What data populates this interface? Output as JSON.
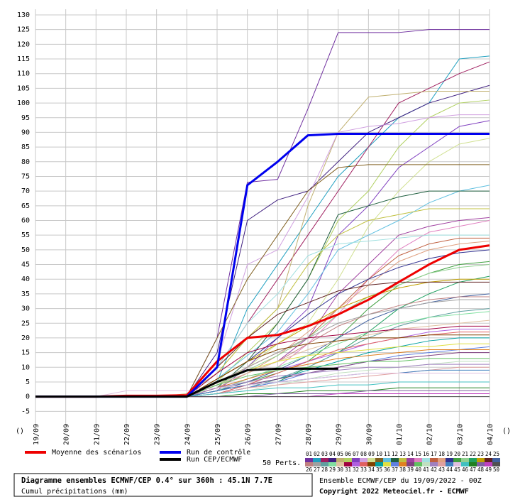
{
  "chart_data": {
    "type": "line",
    "title": "Diagramme ensembles ECMWF/CEP 0.4° sur 360h : 45.1N 7.7E",
    "subtitle": "Cumul précipitations (mm)",
    "run_info": "Ensemble ECMWF/CEP du 19/09/2022 - 00Z",
    "copyright": "Copyright 2022 Meteociel.fr - ECMWF",
    "perturbations_label": "50 Perts.",
    "axis_unit_labels": [
      "()",
      "()"
    ],
    "grid": true,
    "categories": [
      "19/09",
      "20/09",
      "21/09",
      "22/09",
      "23/09",
      "24/09",
      "25/09",
      "26/09",
      "27/09",
      "28/09",
      "29/09",
      "30/09",
      "01/10",
      "02/10",
      "03/10",
      "04/10"
    ],
    "ylim": [
      -10,
      130
    ],
    "yticks": [
      -5,
      0,
      5,
      10,
      15,
      20,
      25,
      30,
      35,
      40,
      45,
      50,
      55,
      60,
      65,
      70,
      75,
      80,
      85,
      90,
      95,
      100,
      105,
      110,
      115,
      120,
      125,
      130
    ],
    "main_series": [
      {
        "name": "Moyenne des scénarios",
        "color": "#ee0000",
        "values": [
          0,
          0,
          0,
          0.3,
          0.3,
          0.5,
          12,
          20,
          21,
          24,
          28,
          33,
          39,
          45,
          50,
          51.5
        ]
      },
      {
        "name": "Run de contrôle",
        "color": "#0000ee",
        "values": [
          0,
          0,
          0,
          0,
          0,
          0,
          10,
          72,
          80,
          89,
          89.5,
          89.5,
          89.5,
          89.5,
          89.5,
          89.5
        ]
      },
      {
        "name": "Run CEP/ECMWF",
        "color": "#000000",
        "values": [
          0,
          0,
          0,
          0,
          0,
          0,
          5,
          9,
          9.5,
          9.5,
          9.5,
          null,
          null,
          null,
          null,
          null
        ]
      }
    ],
    "series": [
      {
        "name": "01",
        "color": "#7030a0",
        "values": [
          0,
          0,
          0,
          0,
          0,
          0,
          20,
          73,
          74,
          98,
          124,
          124,
          124,
          125,
          125,
          125
        ]
      },
      {
        "name": "02",
        "color": "#20a0c0",
        "values": [
          0,
          0,
          0,
          0,
          0,
          0,
          5,
          30,
          45,
          60,
          75,
          85,
          95,
          100,
          115,
          116
        ]
      },
      {
        "name": "03",
        "color": "#a02060",
        "values": [
          0,
          0,
          0,
          0,
          0,
          0,
          10,
          25,
          40,
          55,
          70,
          85,
          100,
          105,
          110,
          114
        ]
      },
      {
        "name": "04",
        "color": "#402080",
        "values": [
          0,
          0,
          0,
          0,
          0,
          0,
          15,
          60,
          67,
          70,
          80,
          90,
          95,
          100,
          103,
          106
        ]
      },
      {
        "name": "05",
        "color": "#c0b070",
        "values": [
          0,
          0,
          0,
          0,
          0,
          1,
          8,
          20,
          30,
          65,
          90,
          102,
          103,
          104,
          104,
          104
        ]
      },
      {
        "name": "06",
        "color": "#b0d060",
        "values": [
          0,
          0,
          0,
          0,
          0,
          0,
          5,
          15,
          25,
          40,
          60,
          70,
          85,
          95,
          100,
          101
        ]
      },
      {
        "name": "07",
        "color": "#8040c0",
        "values": [
          0,
          0,
          0,
          0,
          0,
          0,
          2,
          10,
          20,
          30,
          55,
          65,
          78,
          85,
          92,
          94
        ]
      },
      {
        "name": "08",
        "color": "#d0a0e0",
        "values": [
          0,
          0,
          0,
          0,
          0,
          0,
          12,
          45,
          50,
          68,
          90,
          92,
          93,
          95,
          96,
          96
        ]
      },
      {
        "name": "09",
        "color": "#d0e090",
        "values": [
          0,
          0,
          0,
          0,
          0,
          0,
          4,
          10,
          18,
          25,
          40,
          58,
          70,
          80,
          86,
          88
        ]
      },
      {
        "name": "10",
        "color": "#806020",
        "values": [
          0,
          0,
          0,
          0,
          0,
          0,
          20,
          40,
          55,
          70,
          78,
          79,
          79,
          79,
          79,
          79
        ]
      },
      {
        "name": "11",
        "color": "#60c0e0",
        "values": [
          0,
          0,
          0,
          0,
          0,
          0,
          6,
          14,
          22,
          35,
          50,
          55,
          60,
          66,
          70,
          72
        ]
      },
      {
        "name": "12",
        "color": "#206040",
        "values": [
          0,
          0,
          0,
          0,
          0,
          0,
          3,
          12,
          25,
          40,
          62,
          65,
          68,
          70,
          70,
          70
        ]
      },
      {
        "name": "13",
        "color": "#c0c040",
        "values": [
          0,
          0,
          0,
          0,
          0,
          0,
          8,
          20,
          30,
          45,
          55,
          60,
          62,
          64,
          64,
          64
        ]
      },
      {
        "name": "14",
        "color": "#a040a0",
        "values": [
          0,
          0,
          0,
          0,
          0,
          0,
          4,
          8,
          12,
          20,
          35,
          45,
          55,
          58,
          60,
          61
        ]
      },
      {
        "name": "15",
        "color": "#e080c0",
        "values": [
          0,
          0,
          0,
          0,
          0,
          0,
          2,
          6,
          10,
          18,
          28,
          40,
          50,
          56,
          58,
          60
        ]
      },
      {
        "name": "16",
        "color": "#a0e0e0",
        "values": [
          0,
          0,
          0,
          0,
          0,
          0,
          10,
          25,
          35,
          48,
          52,
          53,
          54,
          55,
          55,
          55
        ]
      },
      {
        "name": "17",
        "color": "#c06040",
        "values": [
          0,
          0,
          0,
          0,
          0,
          0,
          5,
          10,
          15,
          20,
          30,
          40,
          48,
          52,
          54,
          54
        ]
      },
      {
        "name": "18",
        "color": "#e0a080",
        "values": [
          0,
          0,
          0,
          0,
          0,
          0,
          3,
          8,
          14,
          22,
          30,
          38,
          46,
          50,
          52,
          53
        ]
      },
      {
        "name": "19",
        "color": "#303090",
        "values": [
          0,
          0,
          0,
          0,
          0,
          0,
          6,
          12,
          20,
          28,
          35,
          40,
          44,
          47,
          49,
          50
        ]
      },
      {
        "name": "20",
        "color": "#40a040",
        "values": [
          0,
          0,
          0,
          0,
          0,
          0,
          2,
          5,
          8,
          12,
          20,
          30,
          38,
          42,
          45,
          46
        ]
      },
      {
        "name": "21",
        "color": "#90d090",
        "values": [
          0,
          0,
          0,
          0,
          0,
          0,
          4,
          9,
          14,
          20,
          28,
          34,
          38,
          42,
          44,
          45
        ]
      },
      {
        "name": "22",
        "color": "#20a060",
        "values": [
          0,
          0,
          0,
          0,
          0,
          0,
          1,
          3,
          5,
          10,
          15,
          22,
          30,
          35,
          39,
          41
        ]
      },
      {
        "name": "23",
        "color": "#c0a000",
        "values": [
          0,
          0,
          0,
          0,
          0,
          0,
          6,
          12,
          18,
          24,
          30,
          34,
          37,
          39,
          40,
          40
        ]
      },
      {
        "name": "24",
        "color": "#602020",
        "values": [
          0,
          0,
          0,
          0,
          0,
          0,
          10,
          20,
          28,
          32,
          36,
          38,
          39,
          39,
          39,
          39
        ]
      },
      {
        "name": "25",
        "color": "#4060a0",
        "values": [
          0,
          0,
          0,
          0,
          0,
          0,
          2,
          5,
          9,
          14,
          20,
          26,
          30,
          32,
          34,
          35
        ]
      },
      {
        "name": "26",
        "color": "#c08080",
        "values": [
          0,
          0,
          0,
          0,
          0,
          0,
          3,
          8,
          12,
          18,
          24,
          28,
          31,
          33,
          34,
          34
        ]
      },
      {
        "name": "27",
        "color": "#a0a0a0",
        "values": [
          0,
          0,
          0,
          0,
          0,
          0,
          5,
          10,
          15,
          20,
          25,
          28,
          30,
          32,
          33,
          33
        ]
      },
      {
        "name": "28",
        "color": "#60a0a0",
        "values": [
          0,
          0,
          0,
          0,
          0,
          0,
          1,
          3,
          6,
          10,
          15,
          20,
          24,
          27,
          29,
          30
        ]
      },
      {
        "name": "29",
        "color": "#80e0a0",
        "values": [
          0,
          0,
          0,
          0,
          0,
          0,
          2,
          6,
          10,
          14,
          18,
          22,
          25,
          27,
          28,
          29
        ]
      },
      {
        "name": "30",
        "color": "#e0c0a0",
        "values": [
          0,
          0,
          0,
          0,
          0,
          0,
          4,
          8,
          12,
          16,
          19,
          21,
          23,
          24,
          25,
          26
        ]
      },
      {
        "name": "31",
        "color": "#a00040",
        "values": [
          0,
          0,
          0,
          0,
          0,
          0,
          8,
          15,
          18,
          20,
          21,
          22,
          23,
          23,
          24,
          24
        ]
      },
      {
        "name": "32",
        "color": "#b060e0",
        "values": [
          0,
          0,
          0,
          0,
          0,
          0,
          3,
          6,
          9,
          12,
          15,
          18,
          20,
          22,
          23,
          23
        ]
      },
      {
        "name": "33",
        "color": "#e06060",
        "values": [
          0,
          0,
          0,
          0,
          0,
          0,
          1,
          4,
          8,
          12,
          16,
          18,
          20,
          21,
          22,
          22
        ]
      },
      {
        "name": "34",
        "color": "#804000",
        "values": [
          0,
          0,
          0,
          0,
          0,
          0,
          6,
          12,
          16,
          18,
          19,
          20,
          20,
          21,
          21,
          21
        ]
      },
      {
        "name": "35",
        "color": "#00a0a0",
        "values": [
          0,
          0,
          0,
          0,
          0,
          0,
          2,
          4,
          6,
          9,
          12,
          15,
          17,
          19,
          20,
          20
        ]
      },
      {
        "name": "36",
        "color": "#e0e040",
        "values": [
          0,
          0,
          0,
          0,
          0,
          0,
          5,
          9,
          12,
          14,
          15,
          16,
          17,
          17,
          18,
          18
        ]
      },
      {
        "name": "37",
        "color": "#6080e0",
        "values": [
          0,
          0,
          0,
          0,
          0,
          0,
          1,
          3,
          5,
          8,
          10,
          12,
          14,
          15,
          16,
          17
        ]
      },
      {
        "name": "38",
        "color": "#e08020",
        "values": [
          0,
          0,
          0,
          0,
          0,
          0,
          3,
          6,
          9,
          11,
          13,
          14,
          15,
          16,
          16,
          16
        ]
      },
      {
        "name": "39",
        "color": "#804080",
        "values": [
          0,
          0,
          0,
          0,
          0,
          0,
          2,
          4,
          6,
          8,
          10,
          12,
          13,
          14,
          15,
          15
        ]
      },
      {
        "name": "40",
        "color": "#60c060",
        "values": [
          0,
          0,
          0,
          0,
          0,
          0,
          4,
          7,
          9,
          10,
          11,
          12,
          12,
          13,
          13,
          13
        ]
      },
      {
        "name": "41",
        "color": "#c0e0c0",
        "values": [
          0,
          0,
          0,
          0,
          0,
          0,
          1,
          2,
          4,
          6,
          8,
          9,
          10,
          11,
          12,
          12
        ]
      },
      {
        "name": "42",
        "color": "#a080c0",
        "values": [
          0,
          0,
          0,
          0,
          0,
          0,
          3,
          5,
          7,
          8,
          9,
          10,
          10,
          11,
          11,
          11
        ]
      },
      {
        "name": "43",
        "color": "#e0a0a0",
        "values": [
          0,
          0,
          0,
          0,
          0,
          0,
          1,
          3,
          4,
          5,
          6,
          7,
          8,
          9,
          10,
          10
        ]
      },
      {
        "name": "44",
        "color": "#4080c0",
        "values": [
          0,
          0,
          0,
          0,
          0,
          0,
          2,
          4,
          5,
          6,
          7,
          8,
          8,
          9,
          9,
          9
        ]
      },
      {
        "name": "45",
        "color": "#e0c0e0",
        "values": [
          0,
          0,
          0,
          2,
          2,
          2,
          3,
          4,
          5,
          6,
          7,
          8,
          8,
          8,
          8,
          8
        ]
      },
      {
        "name": "46",
        "color": "#40c0c0",
        "values": [
          0,
          0,
          0,
          0,
          0,
          0,
          1,
          2,
          3,
          3,
          4,
          4,
          5,
          5,
          5,
          5
        ]
      },
      {
        "name": "47",
        "color": "#208020",
        "values": [
          0,
          0,
          0,
          0,
          0,
          0,
          0,
          1,
          1,
          2,
          2,
          2,
          3,
          3,
          3,
          3
        ]
      },
      {
        "name": "48",
        "color": "#8060a0",
        "values": [
          0,
          0,
          0,
          0,
          0,
          0,
          0,
          0,
          1,
          1,
          1,
          2,
          2,
          2,
          2,
          2
        ]
      },
      {
        "name": "49",
        "color": "#c040c0",
        "values": [
          0,
          0,
          0,
          0,
          0,
          0,
          0,
          0,
          0,
          0,
          1,
          1,
          1,
          1,
          1,
          1
        ]
      },
      {
        "name": "50",
        "color": "#505050",
        "values": [
          0,
          0,
          0,
          0,
          0,
          0,
          0,
          0,
          0,
          0,
          0,
          0,
          0,
          0,
          0,
          0
        ]
      }
    ]
  }
}
